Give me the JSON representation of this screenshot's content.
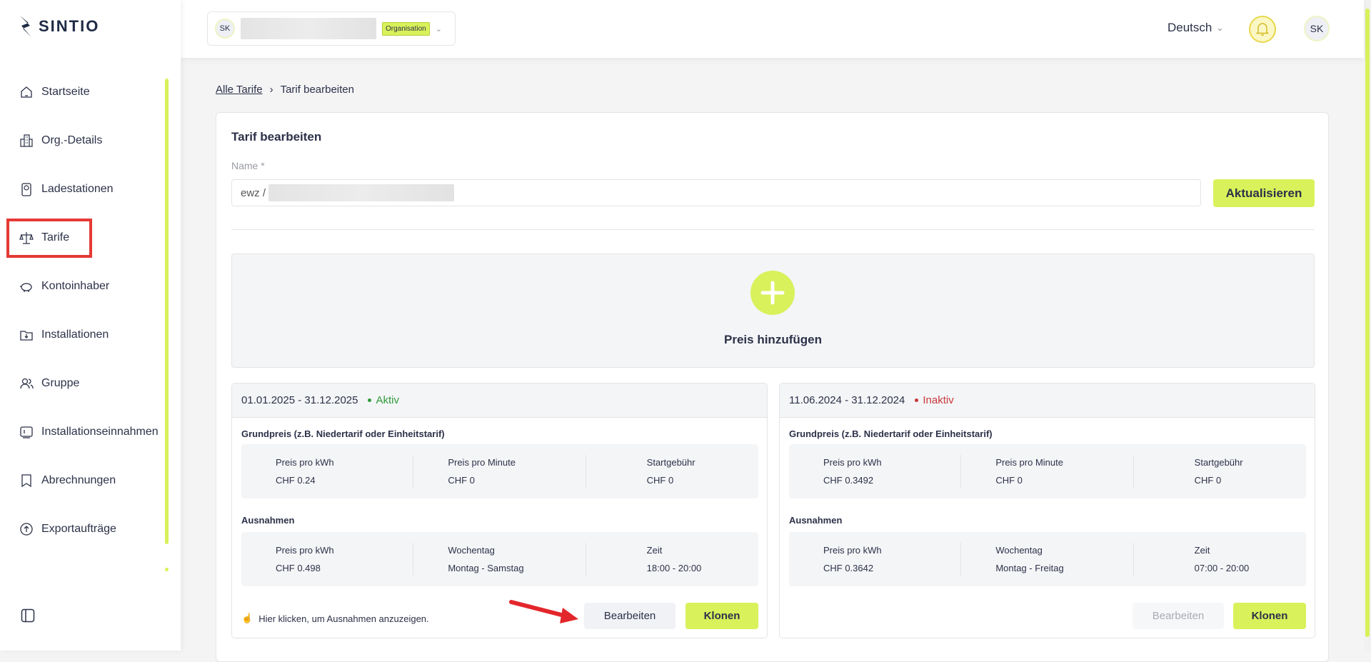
{
  "app": {
    "logo": "SINTIO",
    "accent": "#d9f15a"
  },
  "header": {
    "org_avatar": "SK",
    "org_badge": "Organisation",
    "language": "Deutsch",
    "user_initials": "SK"
  },
  "sidebar": {
    "items": [
      {
        "label": "Startseite",
        "icon": "home-icon"
      },
      {
        "label": "Org.-Details",
        "icon": "building-icon"
      },
      {
        "label": "Ladestationen",
        "icon": "charger-icon"
      },
      {
        "label": "Tarife",
        "icon": "scale-icon"
      },
      {
        "label": "Kontoinhaber",
        "icon": "piggy-bank-icon"
      },
      {
        "label": "Installationen",
        "icon": "folder-icon"
      },
      {
        "label": "Gruppe",
        "icon": "users-icon"
      },
      {
        "label": "Installationseinnahmen",
        "icon": "income-icon"
      },
      {
        "label": "Abrechnungen",
        "icon": "book-icon"
      },
      {
        "label": "Exportaufträge",
        "icon": "export-icon"
      }
    ]
  },
  "breadcrumb": {
    "parent": "Alle Tarife",
    "current": "Tarif bearbeiten"
  },
  "form": {
    "title": "Tarif bearbeiten",
    "name_label": "Name *",
    "name_value": "ewz /",
    "update_button": "Aktualisieren"
  },
  "add_price": {
    "label": "Preis hinzufügen"
  },
  "cards": [
    {
      "period": "01.01.2025 - 31.12.2025",
      "status": "Aktiv",
      "status_color": "#2e9a3a",
      "base_title": "Grundpreis (z.B. Niedertarif oder Einheitstarif)",
      "base": [
        {
          "label": "Preis pro kWh",
          "value": "CHF 0.24"
        },
        {
          "label": "Preis pro Minute",
          "value": "CHF 0"
        },
        {
          "label": "Startgebühr",
          "value": "CHF 0"
        }
      ],
      "exc_title": "Ausnahmen",
      "exc": [
        {
          "label": "Preis pro kWh",
          "value": "CHF 0.498"
        },
        {
          "label": "Wochentag",
          "value": "Montag - Samstag"
        },
        {
          "label": "Zeit",
          "value": "18:00 - 20:00"
        }
      ],
      "hint": "Hier klicken, um Ausnahmen anzuzeigen.",
      "edit": "Bearbeiten",
      "clone": "Klonen",
      "edit_disabled": false
    },
    {
      "period": "11.06.2024 - 31.12.2024",
      "status": "Inaktiv",
      "status_color": "#c8373a",
      "base_title": "Grundpreis (z.B. Niedertarif oder Einheitstarif)",
      "base": [
        {
          "label": "Preis pro kWh",
          "value": "CHF 0.3492"
        },
        {
          "label": "Preis pro Minute",
          "value": "CHF 0"
        },
        {
          "label": "Startgebühr",
          "value": "CHF 0"
        }
      ],
      "exc_title": "Ausnahmen",
      "exc": [
        {
          "label": "Preis pro kWh",
          "value": "CHF 0.3642"
        },
        {
          "label": "Wochentag",
          "value": "Montag - Freitag"
        },
        {
          "label": "Zeit",
          "value": "07:00 - 20:00"
        }
      ],
      "hint": null,
      "edit": "Bearbeiten",
      "clone": "Klonen",
      "edit_disabled": true
    }
  ]
}
